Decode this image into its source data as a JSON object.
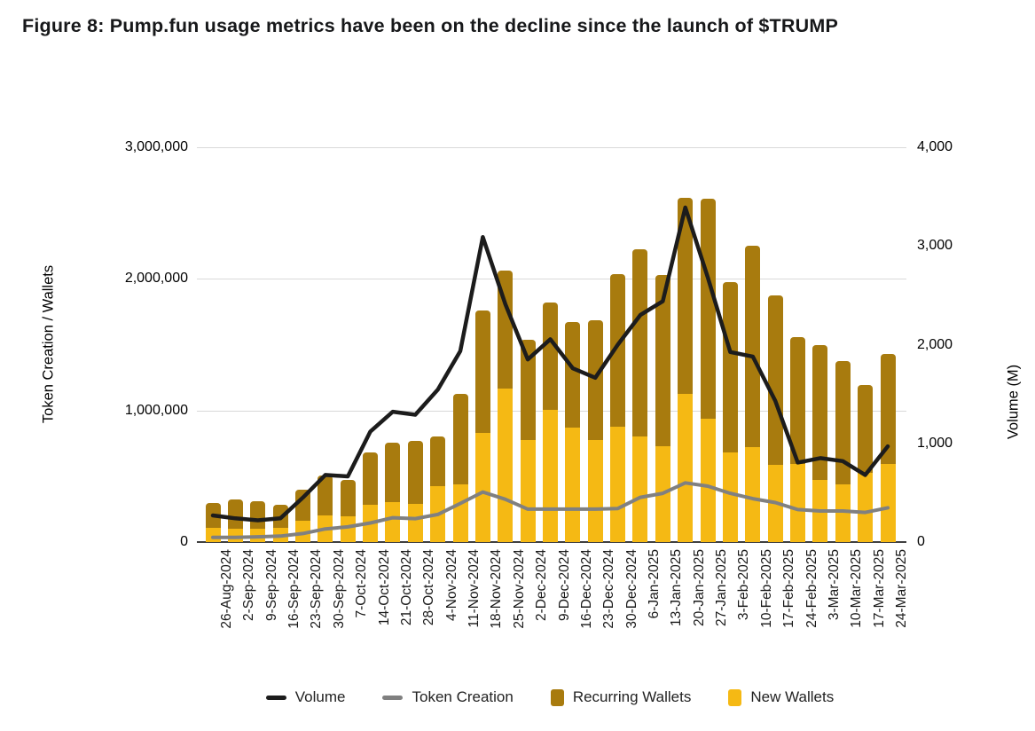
{
  "title": "Figure 8: Pump.fun usage metrics have been on the decline since the launch of $TRUMP",
  "chart_data": {
    "type": "combo: stacked bar + line, dual axis",
    "categories": [
      "26-Aug-2024",
      "2-Sep-2024",
      "9-Sep-2024",
      "16-Sep-2024",
      "23-Sep-2024",
      "30-Sep-2024",
      "7-Oct-2024",
      "14-Oct-2024",
      "21-Oct-2024",
      "28-Oct-2024",
      "4-Nov-2024",
      "11-Nov-2024",
      "18-Nov-2024",
      "25-Nov-2024",
      "2-Dec-2024",
      "9-Dec-2024",
      "16-Dec-2024",
      "23-Dec-2024",
      "30-Dec-2024",
      "6-Jan-2025",
      "13-Jan-2025",
      "20-Jan-2025",
      "27-Jan-2025",
      "3-Feb-2025",
      "10-Feb-2025",
      "17-Feb-2025",
      "24-Feb-2025",
      "3-Mar-2025",
      "10-Mar-2025",
      "17-Mar-2025",
      "24-Mar-2025"
    ],
    "series": [
      {
        "name": "Volume",
        "type": "line",
        "axis": "right",
        "color": "#1c1c1c",
        "values": [
          270,
          240,
          220,
          240,
          450,
          680,
          665,
          1120,
          1320,
          1290,
          1545,
          1935,
          3090,
          2410,
          1850,
          2055,
          1760,
          1665,
          2000,
          2300,
          2440,
          3390,
          2680,
          1925,
          1880,
          1430,
          805,
          850,
          820,
          680,
          970
        ]
      },
      {
        "name": "Token Creation",
        "type": "line",
        "axis": "left",
        "color": "#808080",
        "values": [
          35000,
          35000,
          40000,
          45000,
          65000,
          100000,
          115000,
          145000,
          185000,
          178000,
          210000,
          293000,
          380000,
          325000,
          250000,
          250000,
          250000,
          250000,
          255000,
          340000,
          370000,
          450000,
          425000,
          370000,
          330000,
          300000,
          247000,
          236000,
          236000,
          225000,
          260000
        ]
      },
      {
        "name": "Recurring Wallets",
        "type": "bar",
        "stack": "top",
        "axis": "left",
        "color": "#a87b0e",
        "values": [
          191000,
          225000,
          210000,
          173000,
          230000,
          305000,
          275000,
          398000,
          455000,
          483000,
          375000,
          686000,
          928000,
          900000,
          760000,
          816000,
          805000,
          911000,
          1157000,
          1423000,
          1299000,
          1495000,
          1671000,
          1291000,
          1536000,
          1290000,
          965000,
          1023000,
          934000,
          668000,
          836000
        ]
      },
      {
        "name": "New Wallets",
        "type": "bar",
        "stack": "bottom",
        "axis": "left",
        "color": "#f5b914",
        "values": [
          105000,
          100000,
          100000,
          108000,
          165000,
          200000,
          195000,
          280000,
          303000,
          288000,
          427000,
          438000,
          832000,
          1163000,
          775000,
          1005000,
          870000,
          775000,
          877000,
          802000,
          731000,
          1124000,
          937000,
          681000,
          719000,
          585000,
          591000,
          472000,
          438000,
          524000,
          596000
        ]
      }
    ],
    "left_axis": {
      "title": "Token Creation / Wallets",
      "min": 0,
      "max": 3000000,
      "ticks": [
        "0",
        "1,000,000",
        "2,000,000",
        "3,000,000"
      ]
    },
    "right_axis": {
      "title": "Volume (M)",
      "min": 0,
      "max": 4000,
      "ticks": [
        "0",
        "1,000",
        "2,000",
        "3,000",
        "4,000"
      ]
    },
    "grid": true,
    "legend_position": "bottom"
  }
}
